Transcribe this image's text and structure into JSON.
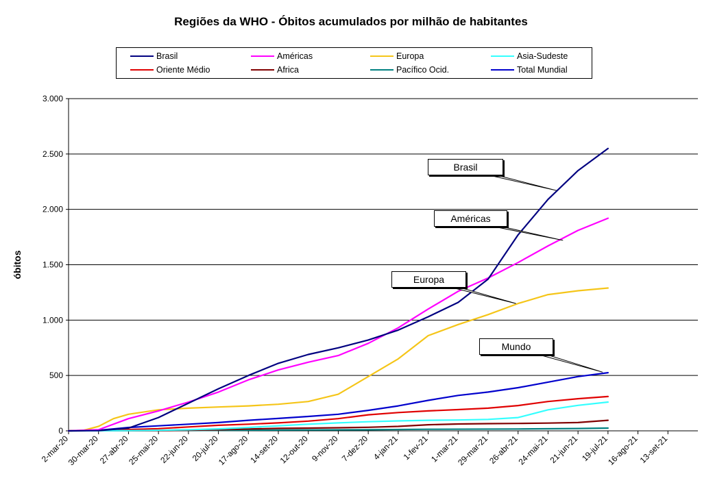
{
  "chart_data": {
    "type": "line",
    "title": "Regiões da WHO - Óbitos acumulados por milhão de habitantes",
    "ylabel": "óbitos",
    "xlabel": "",
    "ylim": [
      0,
      3000
    ],
    "yticks": [
      0,
      500,
      1000,
      1500,
      2000,
      2500,
      3000
    ],
    "ytick_labels": [
      "0",
      "500",
      "1.000",
      "1.500",
      "2.000",
      "2.500",
      "3.000"
    ],
    "x_type": "date",
    "xlim": [
      "2020-03-02",
      "2021-10-11"
    ],
    "xticks": [
      "2020-03-02",
      "2020-03-30",
      "2020-04-27",
      "2020-05-25",
      "2020-06-22",
      "2020-07-20",
      "2020-08-17",
      "2020-09-14",
      "2020-10-12",
      "2020-11-09",
      "2020-12-07",
      "2021-01-04",
      "2021-02-01",
      "2021-03-01",
      "2021-03-29",
      "2021-04-26",
      "2021-05-24",
      "2021-06-21",
      "2021-07-19",
      "2021-08-16",
      "2021-09-13"
    ],
    "xtick_labels": [
      "2-mar-20",
      "30-mar-20",
      "27-abr-20",
      "25-mai-20",
      "22-jun-20",
      "20-jul-20",
      "17-ago-20",
      "14-set-20",
      "12-out-20",
      "9-nov-20",
      "7-dez-20",
      "4-jan-21",
      "1-fev-21",
      "1-mar-21",
      "29-mar-21",
      "26-abr-21",
      "24-mai-21",
      "21-jun-21",
      "19-jul-21",
      "16-ago-21",
      "13-set-21"
    ],
    "grid": "horizontal",
    "legend_position": "top",
    "series": [
      {
        "name": "Brasil",
        "color": "#000080",
        "points": [
          [
            "2020-03-02",
            0
          ],
          [
            "2020-03-30",
            2
          ],
          [
            "2020-04-27",
            25
          ],
          [
            "2020-05-25",
            120
          ],
          [
            "2020-06-22",
            250
          ],
          [
            "2020-07-20",
            380
          ],
          [
            "2020-08-17",
            500
          ],
          [
            "2020-09-14",
            610
          ],
          [
            "2020-10-12",
            690
          ],
          [
            "2020-11-09",
            750
          ],
          [
            "2020-12-07",
            820
          ],
          [
            "2021-01-04",
            910
          ],
          [
            "2021-02-01",
            1030
          ],
          [
            "2021-03-01",
            1160
          ],
          [
            "2021-03-29",
            1370
          ],
          [
            "2021-04-26",
            1770
          ],
          [
            "2021-05-24",
            2090
          ],
          [
            "2021-06-21",
            2350
          ],
          [
            "2021-07-19",
            2550
          ]
        ]
      },
      {
        "name": "Américas",
        "color": "#ff00ff",
        "points": [
          [
            "2020-03-02",
            0
          ],
          [
            "2020-03-30",
            10
          ],
          [
            "2020-04-27",
            110
          ],
          [
            "2020-05-25",
            180
          ],
          [
            "2020-06-22",
            260
          ],
          [
            "2020-07-20",
            350
          ],
          [
            "2020-08-17",
            460
          ],
          [
            "2020-09-14",
            550
          ],
          [
            "2020-10-12",
            620
          ],
          [
            "2020-11-09",
            680
          ],
          [
            "2020-12-07",
            790
          ],
          [
            "2021-01-04",
            930
          ],
          [
            "2021-02-01",
            1100
          ],
          [
            "2021-03-01",
            1260
          ],
          [
            "2021-03-29",
            1380
          ],
          [
            "2021-04-26",
            1520
          ],
          [
            "2021-05-24",
            1670
          ],
          [
            "2021-06-21",
            1810
          ],
          [
            "2021-07-19",
            1920
          ]
        ]
      },
      {
        "name": "Europa",
        "color": "#f5c518",
        "points": [
          [
            "2020-03-02",
            0
          ],
          [
            "2020-03-16",
            5
          ],
          [
            "2020-03-30",
            40
          ],
          [
            "2020-04-13",
            110
          ],
          [
            "2020-04-27",
            150
          ],
          [
            "2020-05-25",
            190
          ],
          [
            "2020-06-22",
            205
          ],
          [
            "2020-07-20",
            215
          ],
          [
            "2020-08-17",
            225
          ],
          [
            "2020-09-14",
            240
          ],
          [
            "2020-10-12",
            265
          ],
          [
            "2020-11-09",
            330
          ],
          [
            "2020-12-07",
            490
          ],
          [
            "2021-01-04",
            650
          ],
          [
            "2021-02-01",
            860
          ],
          [
            "2021-03-01",
            960
          ],
          [
            "2021-03-29",
            1050
          ],
          [
            "2021-04-26",
            1150
          ],
          [
            "2021-05-24",
            1230
          ],
          [
            "2021-06-21",
            1265
          ],
          [
            "2021-07-19",
            1290
          ]
        ]
      },
      {
        "name": "Asia-Sudeste",
        "color": "#33ffff",
        "points": [
          [
            "2020-03-02",
            0
          ],
          [
            "2020-04-27",
            2
          ],
          [
            "2020-05-25",
            5
          ],
          [
            "2020-06-22",
            10
          ],
          [
            "2020-07-20",
            18
          ],
          [
            "2020-08-17",
            30
          ],
          [
            "2020-09-14",
            45
          ],
          [
            "2020-10-12",
            60
          ],
          [
            "2020-11-09",
            72
          ],
          [
            "2020-12-07",
            82
          ],
          [
            "2021-01-04",
            90
          ],
          [
            "2021-02-01",
            95
          ],
          [
            "2021-03-01",
            98
          ],
          [
            "2021-03-29",
            103
          ],
          [
            "2021-04-26",
            120
          ],
          [
            "2021-05-24",
            190
          ],
          [
            "2021-06-21",
            230
          ],
          [
            "2021-07-19",
            260
          ]
        ]
      },
      {
        "name": "Oriente Médio",
        "color": "#e00000",
        "points": [
          [
            "2020-03-02",
            0
          ],
          [
            "2020-03-30",
            5
          ],
          [
            "2020-04-27",
            12
          ],
          [
            "2020-05-25",
            20
          ],
          [
            "2020-06-22",
            35
          ],
          [
            "2020-07-20",
            50
          ],
          [
            "2020-08-17",
            60
          ],
          [
            "2020-09-14",
            72
          ],
          [
            "2020-10-12",
            88
          ],
          [
            "2020-11-09",
            110
          ],
          [
            "2020-12-07",
            145
          ],
          [
            "2021-01-04",
            165
          ],
          [
            "2021-02-01",
            180
          ],
          [
            "2021-03-01",
            192
          ],
          [
            "2021-03-29",
            205
          ],
          [
            "2021-04-26",
            228
          ],
          [
            "2021-05-24",
            265
          ],
          [
            "2021-06-21",
            290
          ],
          [
            "2021-07-19",
            310
          ]
        ]
      },
      {
        "name": "Africa",
        "color": "#800000",
        "points": [
          [
            "2020-03-02",
            0
          ],
          [
            "2020-04-27",
            1
          ],
          [
            "2020-05-25",
            2
          ],
          [
            "2020-06-22",
            5
          ],
          [
            "2020-07-20",
            10
          ],
          [
            "2020-08-17",
            17
          ],
          [
            "2020-09-14",
            22
          ],
          [
            "2020-10-12",
            25
          ],
          [
            "2020-11-09",
            28
          ],
          [
            "2020-12-07",
            32
          ],
          [
            "2021-01-04",
            40
          ],
          [
            "2021-02-01",
            55
          ],
          [
            "2021-03-01",
            62
          ],
          [
            "2021-03-29",
            65
          ],
          [
            "2021-04-26",
            67
          ],
          [
            "2021-05-24",
            70
          ],
          [
            "2021-06-21",
            75
          ],
          [
            "2021-07-19",
            95
          ]
        ]
      },
      {
        "name": "Pacífico Ocid.",
        "color": "#008080",
        "points": [
          [
            "2020-03-02",
            0
          ],
          [
            "2020-04-27",
            2
          ],
          [
            "2020-06-22",
            3
          ],
          [
            "2020-08-17",
            6
          ],
          [
            "2020-10-12",
            8
          ],
          [
            "2020-12-07",
            10
          ],
          [
            "2021-02-01",
            14
          ],
          [
            "2021-04-26",
            17
          ],
          [
            "2021-06-21",
            21
          ],
          [
            "2021-07-19",
            25
          ]
        ]
      },
      {
        "name": "Total Mundial",
        "color": "#0000cc",
        "points": [
          [
            "2020-03-02",
            0
          ],
          [
            "2020-03-30",
            5
          ],
          [
            "2020-04-27",
            30
          ],
          [
            "2020-05-25",
            45
          ],
          [
            "2020-06-22",
            60
          ],
          [
            "2020-07-20",
            75
          ],
          [
            "2020-08-17",
            95
          ],
          [
            "2020-09-14",
            112
          ],
          [
            "2020-10-12",
            130
          ],
          [
            "2020-11-09",
            150
          ],
          [
            "2020-12-07",
            185
          ],
          [
            "2021-01-04",
            225
          ],
          [
            "2021-02-01",
            275
          ],
          [
            "2021-03-01",
            320
          ],
          [
            "2021-03-29",
            350
          ],
          [
            "2021-04-26",
            390
          ],
          [
            "2021-05-24",
            440
          ],
          [
            "2021-06-21",
            490
          ],
          [
            "2021-07-19",
            525
          ]
        ]
      }
    ],
    "annotations": [
      {
        "text": "Brasil",
        "target": [
          "2021-06-01",
          2170
        ]
      },
      {
        "text": "Américas",
        "target": [
          "2021-06-07",
          1720
        ]
      },
      {
        "text": "Europa",
        "target": [
          "2021-04-24",
          1150
        ]
      },
      {
        "text": "Mundo",
        "target": [
          "2021-07-14",
          530
        ]
      }
    ]
  }
}
